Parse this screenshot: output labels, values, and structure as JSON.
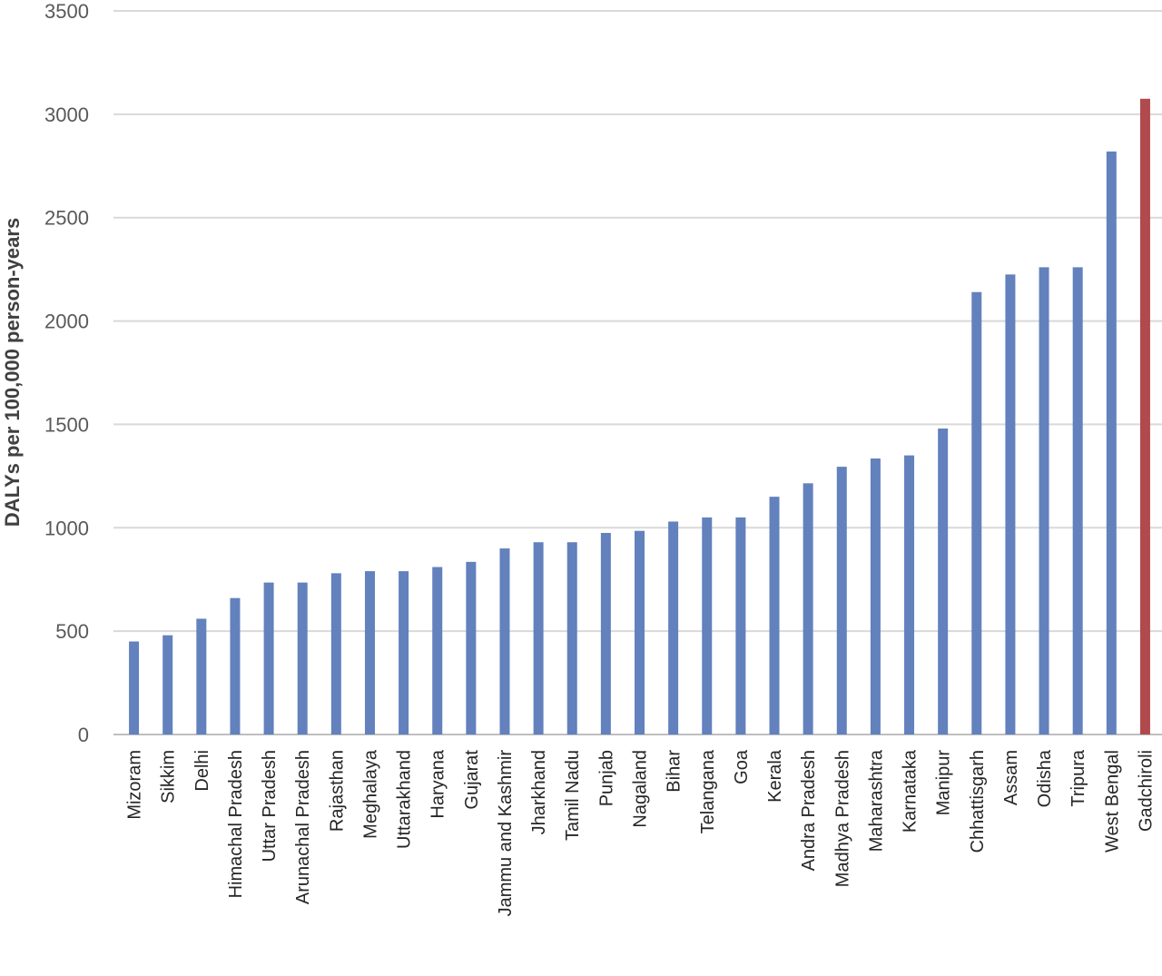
{
  "chart_data": {
    "type": "bar",
    "ylabel": "DALYs per 100,000 person-years",
    "ylim": [
      0,
      3500
    ],
    "yticks": [
      0,
      500,
      1000,
      1500,
      2000,
      2500,
      3000,
      3500
    ],
    "grid": true,
    "categories": [
      "Mizoram",
      "Sikkim",
      "Delhi",
      "Himachal Pradesh",
      "Uttar Pradesh",
      "Arunachal Pradesh",
      "Rajasthan",
      "Meghalaya",
      "Uttarakhand",
      "Haryana",
      "Gujarat",
      "Jammu and Kashmir",
      "Jharkhand",
      "Tamil Nadu",
      "Punjab",
      "Nagaland",
      "Bihar",
      "Telangana",
      "Goa",
      "Kerala",
      "Andra Pradesh",
      "Madhya Pradesh",
      "Maharashtra",
      "Karnataka",
      "Manipur",
      "Chhattisgarh",
      "Assam",
      "Odisha",
      "Tripura",
      "West Bengal",
      "Gadchiroli"
    ],
    "values": [
      450,
      480,
      560,
      660,
      735,
      735,
      780,
      790,
      790,
      810,
      835,
      900,
      930,
      930,
      975,
      985,
      1030,
      1050,
      1050,
      1150,
      1215,
      1295,
      1335,
      1350,
      1480,
      2140,
      2225,
      2260,
      2260,
      2820,
      3075
    ],
    "colors": {
      "default": "#6281bd",
      "highlight": "#b04a4d"
    },
    "highlight_index": 30
  }
}
